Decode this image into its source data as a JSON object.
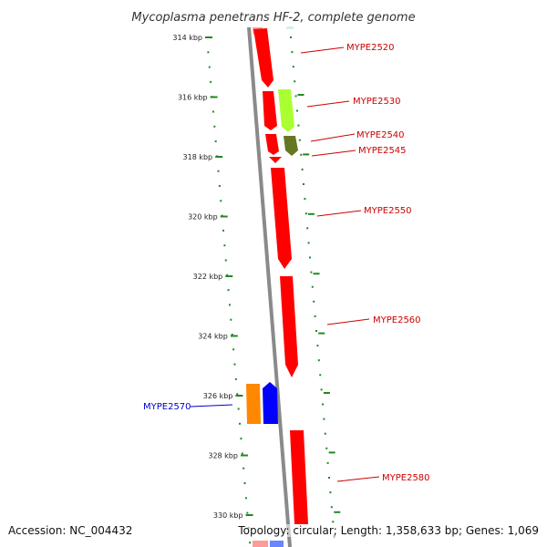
{
  "title": "Mycoplasma penetrans HF-2, complete genome",
  "ticks": [
    "314 kbp",
    "316 kbp",
    "318 kbp",
    "320 kbp",
    "322 kbp",
    "324 kbp",
    "326 kbp",
    "328 kbp",
    "330 kbp"
  ],
  "genes": [
    {
      "name": "MYPE2520",
      "strand": "forward",
      "color": "#ff0000",
      "label_color": "#cc0000"
    },
    {
      "name": "MYPE2530",
      "strand": "reverse",
      "color": "#aaff33",
      "label_color": "#cc0000"
    },
    {
      "name": "MYPE2540",
      "strand": "reverse",
      "color": "#667722",
      "label_color": "#cc0000"
    },
    {
      "name": "MYPE2545",
      "strand": "forward",
      "color": "#ff0000",
      "label_color": "#cc0000"
    },
    {
      "name": "MYPE2550",
      "strand": "forward",
      "color": "#ff0000",
      "label_color": "#cc0000"
    },
    {
      "name": "MYPE2560",
      "strand": "forward",
      "color": "#ff0000",
      "label_color": "#cc0000"
    },
    {
      "name": "MYPE2570",
      "strand": "reverse",
      "color": "#0000ff",
      "label_color": "#0000cc"
    },
    {
      "name": "MYPE2580",
      "strand": "forward",
      "color": "#ff0000",
      "label_color": "#cc0000"
    }
  ],
  "footer": {
    "accession": "Accession: NC_004432",
    "summary": "Topology: circular; Length: 1,358,633 bp; Genes: 1,069"
  },
  "colors": {
    "backbone": "#888888",
    "scale_dots": "#228822",
    "gene_forward": "#ff0000",
    "gene_reverse_orange": "#ff8800",
    "gene_reverse_blue": "#0000ff"
  }
}
